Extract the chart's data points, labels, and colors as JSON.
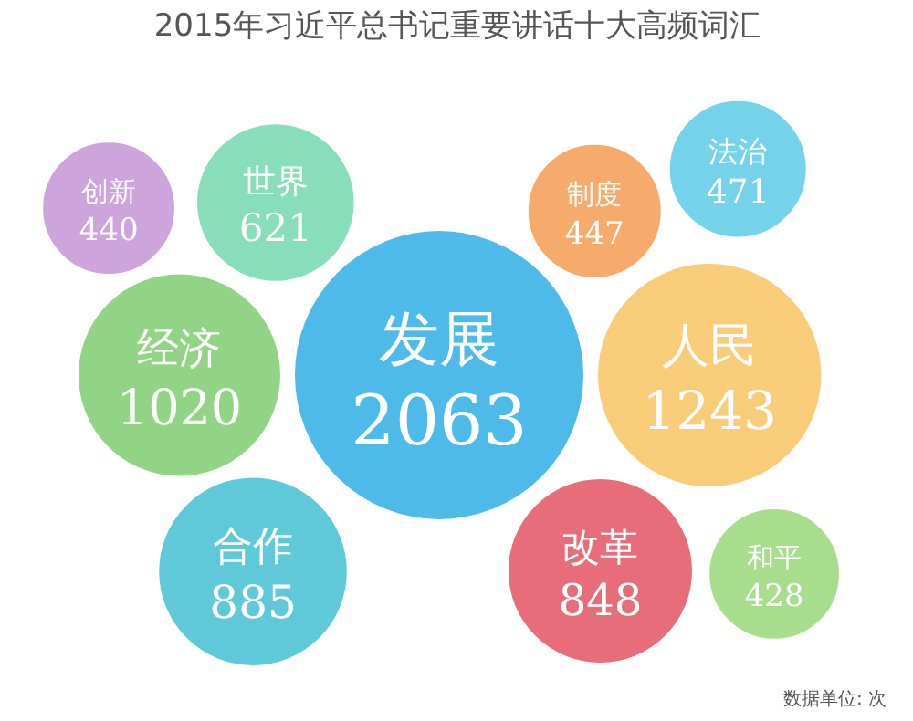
{
  "chart_data": {
    "type": "other",
    "title": "2015年习近平总书记重要讲话十大高频词汇",
    "categories": [
      "发展",
      "人民",
      "经济",
      "合作",
      "改革",
      "世界",
      "制度",
      "法治",
      "创新",
      "和平"
    ],
    "values": [
      2063,
      1243,
      1020,
      885,
      848,
      621,
      447,
      471,
      440,
      428
    ],
    "colors": [
      "#3ab3e8",
      "#f8c66a",
      "#86cf78",
      "#4ec3d6",
      "#e45d6c",
      "#7bd9b2",
      "#f5a25c",
      "#66cde9",
      "#c89ad8",
      "#9fd982"
    ],
    "data_labels": true,
    "annotations": [
      "数据单位: 次"
    ]
  }
}
